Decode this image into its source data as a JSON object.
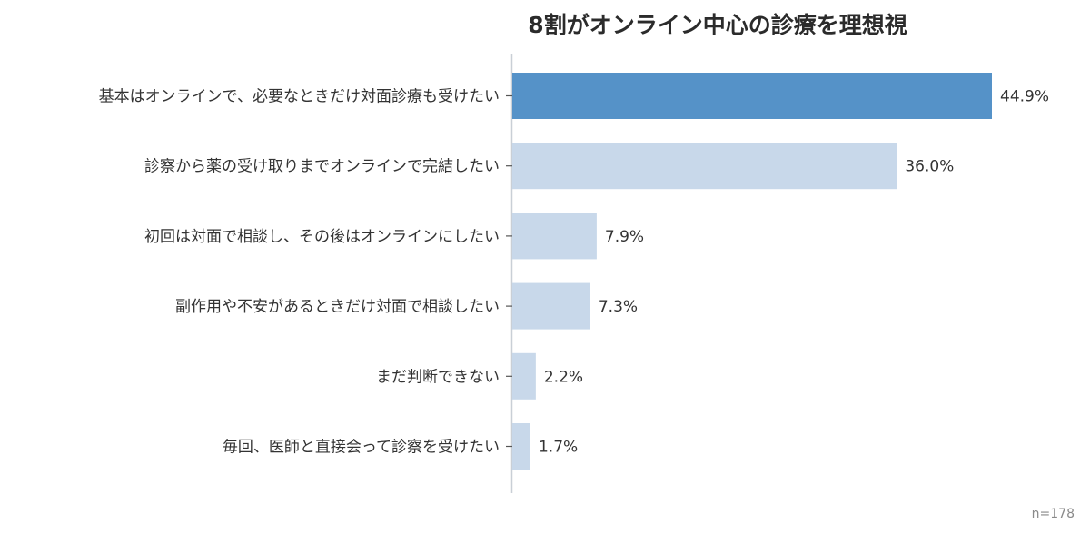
{
  "chart_data": {
    "type": "bar",
    "orientation": "horizontal",
    "title": "8割がオンライン中心の診療を理想視",
    "categories": [
      "基本はオンラインで、必要なときだけ対面診療も受けたい",
      "診察から薬の受け取りまでオンラインで完結したい",
      "初回は対面で相談し、その後はオンラインにしたい",
      "副作用や不安があるときだけ対面で相談したい",
      "まだ判断できない",
      "毎回、医師と直接会って診察を受けたい"
    ],
    "values": [
      44.9,
      36.0,
      7.9,
      7.3,
      2.2,
      1.7
    ],
    "value_labels": [
      "44.9%",
      "36.0%",
      "7.9%",
      "7.3%",
      "2.2%",
      "1.7%"
    ],
    "xlim": [
      0,
      50
    ],
    "grid": false,
    "legend": "none",
    "colors": {
      "highlight": "#5592c8",
      "bar": "#c8d8ea",
      "axis": "#c9cfd6"
    }
  },
  "footnote": "n=178"
}
